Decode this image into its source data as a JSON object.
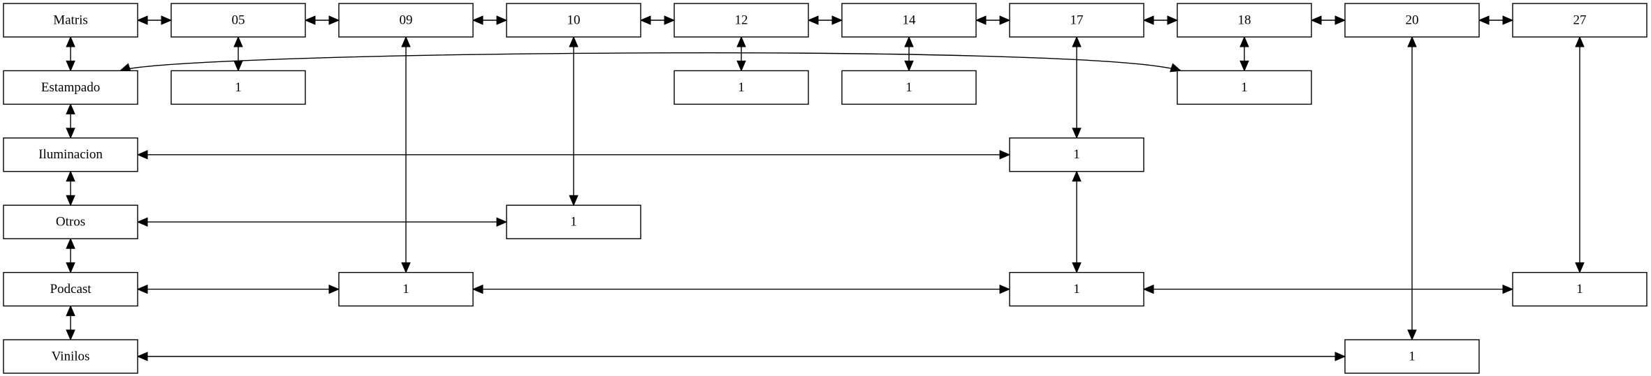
{
  "diagram": {
    "type": "sparse matrix graph",
    "colors": {
      "stroke": "#000000",
      "fill": "#ffffff",
      "text": "#000000"
    },
    "columns": [
      "Matris",
      "05",
      "09",
      "10",
      "12",
      "14",
      "17",
      "18",
      "20",
      "27"
    ],
    "rows": [
      "Matris",
      "Estampado",
      "Iluminacion",
      "Otros",
      "Podcast",
      "Vinilos"
    ],
    "nodes": [
      {
        "id": "matris",
        "label": "Matris",
        "row": 0,
        "col": 0
      },
      {
        "id": "h05",
        "label": "05",
        "row": 0,
        "col": 1
      },
      {
        "id": "h09",
        "label": "09",
        "row": 0,
        "col": 2
      },
      {
        "id": "h10",
        "label": "10",
        "row": 0,
        "col": 3
      },
      {
        "id": "h12",
        "label": "12",
        "row": 0,
        "col": 4
      },
      {
        "id": "h14",
        "label": "14",
        "row": 0,
        "col": 5
      },
      {
        "id": "h17",
        "label": "17",
        "row": 0,
        "col": 6
      },
      {
        "id": "h18",
        "label": "18",
        "row": 0,
        "col": 7
      },
      {
        "id": "h20",
        "label": "20",
        "row": 0,
        "col": 8
      },
      {
        "id": "h27",
        "label": "27",
        "row": 0,
        "col": 9
      },
      {
        "id": "estampado",
        "label": "Estampado",
        "row": 1,
        "col": 0
      },
      {
        "id": "iluminacion",
        "label": "Iluminacion",
        "row": 2,
        "col": 0
      },
      {
        "id": "otros",
        "label": "Otros",
        "row": 3,
        "col": 0
      },
      {
        "id": "podcast",
        "label": "Podcast",
        "row": 4,
        "col": 0
      },
      {
        "id": "vinilos",
        "label": "Vinilos",
        "row": 5,
        "col": 0
      },
      {
        "id": "e05",
        "label": "1",
        "row": 1,
        "col": 1
      },
      {
        "id": "e12",
        "label": "1",
        "row": 1,
        "col": 4
      },
      {
        "id": "e14",
        "label": "1",
        "row": 1,
        "col": 5
      },
      {
        "id": "e18",
        "label": "1",
        "row": 1,
        "col": 7
      },
      {
        "id": "i17",
        "label": "1",
        "row": 2,
        "col": 6
      },
      {
        "id": "o10",
        "label": "1",
        "row": 3,
        "col": 3
      },
      {
        "id": "p09",
        "label": "1",
        "row": 4,
        "col": 2
      },
      {
        "id": "p17",
        "label": "1",
        "row": 4,
        "col": 6
      },
      {
        "id": "p27",
        "label": "1",
        "row": 4,
        "col": 9
      },
      {
        "id": "v20",
        "label": "1",
        "row": 5,
        "col": 8
      }
    ],
    "edges": [
      {
        "from": "matris",
        "to": "h05"
      },
      {
        "from": "h05",
        "to": "h09"
      },
      {
        "from": "h09",
        "to": "h10"
      },
      {
        "from": "h10",
        "to": "h12"
      },
      {
        "from": "h12",
        "to": "h14"
      },
      {
        "from": "h14",
        "to": "h17"
      },
      {
        "from": "h17",
        "to": "h18"
      },
      {
        "from": "h18",
        "to": "h20"
      },
      {
        "from": "h20",
        "to": "h27"
      },
      {
        "from": "matris",
        "to": "estampado"
      },
      {
        "from": "estampado",
        "to": "iluminacion"
      },
      {
        "from": "iluminacion",
        "to": "otros"
      },
      {
        "from": "otros",
        "to": "podcast"
      },
      {
        "from": "podcast",
        "to": "vinilos"
      },
      {
        "from": "h05",
        "to": "e05"
      },
      {
        "from": "h12",
        "to": "e12"
      },
      {
        "from": "h14",
        "to": "e14"
      },
      {
        "from": "h18",
        "to": "e18"
      },
      {
        "from": "h17",
        "to": "i17"
      },
      {
        "from": "i17",
        "to": "p17"
      },
      {
        "from": "h10",
        "to": "o10"
      },
      {
        "from": "h09",
        "to": "p09"
      },
      {
        "from": "h27",
        "to": "p27"
      },
      {
        "from": "h20",
        "to": "v20"
      },
      {
        "from": "estampado",
        "to": "e18",
        "curved": true
      },
      {
        "from": "iluminacion",
        "to": "i17"
      },
      {
        "from": "otros",
        "to": "o10"
      },
      {
        "from": "podcast",
        "to": "p09"
      },
      {
        "from": "p09",
        "to": "p17"
      },
      {
        "from": "p17",
        "to": "p27"
      },
      {
        "from": "vinilos",
        "to": "v20"
      }
    ]
  }
}
